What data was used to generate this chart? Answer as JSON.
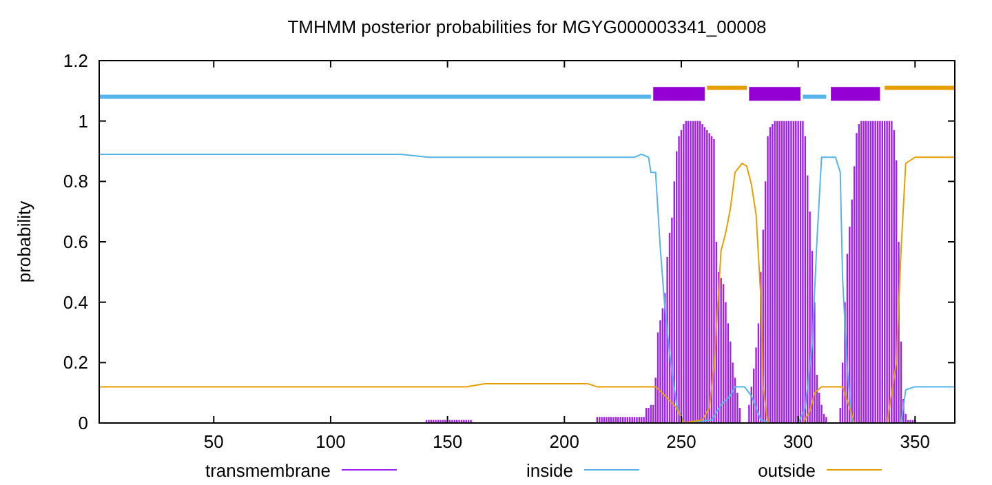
{
  "chart_data": {
    "type": "line",
    "title": "TMHMM posterior probabilities for MGYG000003341_00008",
    "ylabel": "probability",
    "xlim": [
      1,
      367
    ],
    "ylim": [
      0,
      1.2
    ],
    "xticks": [
      50,
      100,
      150,
      200,
      250,
      300,
      350
    ],
    "yticks": [
      0,
      0.2,
      0.4,
      0.6,
      0.8,
      1,
      1.2
    ],
    "legend": "bottom",
    "grid": false,
    "series": [
      {
        "name": "transmembrane",
        "type": "bar",
        "color": "#a020f0",
        "x": [
          141,
          142,
          143,
          144,
          145,
          146,
          147,
          148,
          149,
          150,
          151,
          152,
          153,
          154,
          155,
          156,
          157,
          158,
          159,
          160,
          214,
          215,
          216,
          217,
          218,
          219,
          220,
          221,
          222,
          223,
          224,
          225,
          226,
          227,
          228,
          229,
          230,
          231,
          232,
          233,
          234,
          235,
          236,
          237,
          238,
          239,
          240,
          241,
          242,
          243,
          244,
          245,
          246,
          247,
          248,
          249,
          250,
          251,
          252,
          253,
          254,
          255,
          256,
          257,
          258,
          259,
          260,
          261,
          262,
          263,
          264,
          265,
          266,
          267,
          268,
          269,
          270,
          271,
          272,
          273,
          274,
          275,
          279,
          280,
          281,
          282,
          283,
          284,
          285,
          286,
          287,
          288,
          289,
          290,
          291,
          292,
          293,
          294,
          295,
          296,
          297,
          298,
          299,
          300,
          301,
          302,
          303,
          304,
          305,
          306,
          307,
          308,
          309,
          310,
          311,
          312,
          318,
          319,
          320,
          321,
          322,
          323,
          324,
          325,
          326,
          327,
          328,
          329,
          330,
          331,
          332,
          333,
          334,
          335,
          336,
          337,
          338,
          339,
          340,
          341,
          342,
          343,
          344,
          345,
          346,
          347,
          348,
          349,
          350
        ],
        "values": [
          0.01,
          0.01,
          0.01,
          0.01,
          0.01,
          0.01,
          0.01,
          0.01,
          0.01,
          0.01,
          0.01,
          0.01,
          0.01,
          0.01,
          0.01,
          0.01,
          0.01,
          0.01,
          0.01,
          0.01,
          0.02,
          0.02,
          0.02,
          0.02,
          0.02,
          0.02,
          0.02,
          0.02,
          0.02,
          0.02,
          0.02,
          0.02,
          0.02,
          0.02,
          0.02,
          0.02,
          0.02,
          0.02,
          0.02,
          0.02,
          0.02,
          0.05,
          0.05,
          0.06,
          0.06,
          0.15,
          0.3,
          0.34,
          0.38,
          0.43,
          0.55,
          0.63,
          0.68,
          0.8,
          0.9,
          0.95,
          0.97,
          0.99,
          1,
          1,
          1,
          1,
          1,
          1,
          1,
          0.99,
          0.98,
          0.97,
          0.96,
          0.95,
          0.94,
          0.6,
          0.5,
          0.48,
          0.46,
          0.4,
          0.33,
          0.27,
          0.2,
          0.15,
          0.1,
          0.05,
          0.06,
          0.12,
          0.18,
          0.25,
          0.33,
          0.5,
          0.64,
          0.8,
          0.95,
          0.98,
          0.99,
          1,
          1,
          1,
          1,
          1,
          1,
          1,
          1,
          1,
          1,
          1,
          1,
          1,
          0.95,
          0.82,
          0.7,
          0.57,
          0.4,
          0.16,
          0.1,
          0.06,
          0.03,
          0.02,
          0.05,
          0.2,
          0.4,
          0.56,
          0.65,
          0.74,
          0.85,
          0.96,
          0.99,
          1,
          1,
          1,
          1,
          1,
          1,
          1,
          1,
          1,
          1,
          1,
          1,
          1,
          1,
          0.97,
          0.87,
          0.6,
          0.27,
          0.08,
          0.03,
          0.01,
          0.01,
          0.01,
          0.01
        ]
      },
      {
        "name": "inside",
        "color": "#56b4e9",
        "x": [
          1,
          130,
          142,
          230,
          233,
          236,
          237,
          239,
          241,
          243,
          245,
          248,
          251,
          263,
          267,
          271,
          273,
          277,
          280,
          284,
          288,
          300,
          303,
          306,
          308,
          310,
          316,
          318,
          319,
          321,
          323,
          344,
          346,
          350,
          367
        ],
        "values": [
          0.89,
          0.89,
          0.88,
          0.88,
          0.89,
          0.88,
          0.83,
          0.83,
          0.58,
          0.38,
          0.23,
          0.06,
          0,
          0.01,
          0.06,
          0.09,
          0.12,
          0.12,
          0.09,
          0.01,
          0,
          0,
          0.05,
          0.26,
          0.6,
          0.88,
          0.88,
          0.83,
          0.48,
          0.18,
          0,
          0,
          0.11,
          0.12,
          0.12
        ]
      },
      {
        "name": "outside",
        "color": "#e69f00",
        "x": [
          1,
          158,
          166,
          210,
          214,
          239,
          243,
          248,
          251,
          259,
          262,
          264,
          266,
          267,
          269,
          271,
          273,
          276,
          278,
          280,
          282,
          284,
          285,
          287,
          302,
          305,
          307,
          310,
          319,
          322,
          324,
          338,
          342,
          344,
          346,
          350,
          367
        ],
        "values": [
          0.12,
          0.12,
          0.13,
          0.13,
          0.12,
          0.12,
          0.09,
          0.05,
          0,
          0.01,
          0.05,
          0.19,
          0.44,
          0.57,
          0.63,
          0.71,
          0.83,
          0.86,
          0.85,
          0.79,
          0.69,
          0.42,
          0.12,
          0,
          0,
          0.04,
          0.1,
          0.12,
          0.12,
          0.05,
          0,
          0,
          0.2,
          0.57,
          0.86,
          0.88,
          0.88
        ]
      },
      {
        "type": "line",
        "color": "#56b4e9",
        "x": [
          1,
          237
        ],
        "values": [
          1.08,
          1.08
        ]
      },
      {
        "type": "line",
        "color": "#9400d3",
        "x": [
          238,
          260
        ],
        "values": [
          1.09,
          1.09
        ]
      },
      {
        "type": "line",
        "color": "#e69f00",
        "x": [
          261,
          278
        ],
        "values": [
          1.11,
          1.11
        ]
      },
      {
        "type": "line",
        "color": "#9400d3",
        "x": [
          279,
          301
        ],
        "values": [
          1.09,
          1.09
        ]
      },
      {
        "type": "line",
        "color": "#56b4e9",
        "x": [
          302,
          312
        ],
        "values": [
          1.08,
          1.08
        ]
      },
      {
        "type": "line",
        "color": "#9400d3",
        "x": [
          314,
          335
        ],
        "values": [
          1.09,
          1.09
        ]
      },
      {
        "type": "line",
        "color": "#e69f00",
        "x": [
          337,
          367
        ],
        "values": [
          1.11,
          1.11
        ]
      }
    ]
  }
}
